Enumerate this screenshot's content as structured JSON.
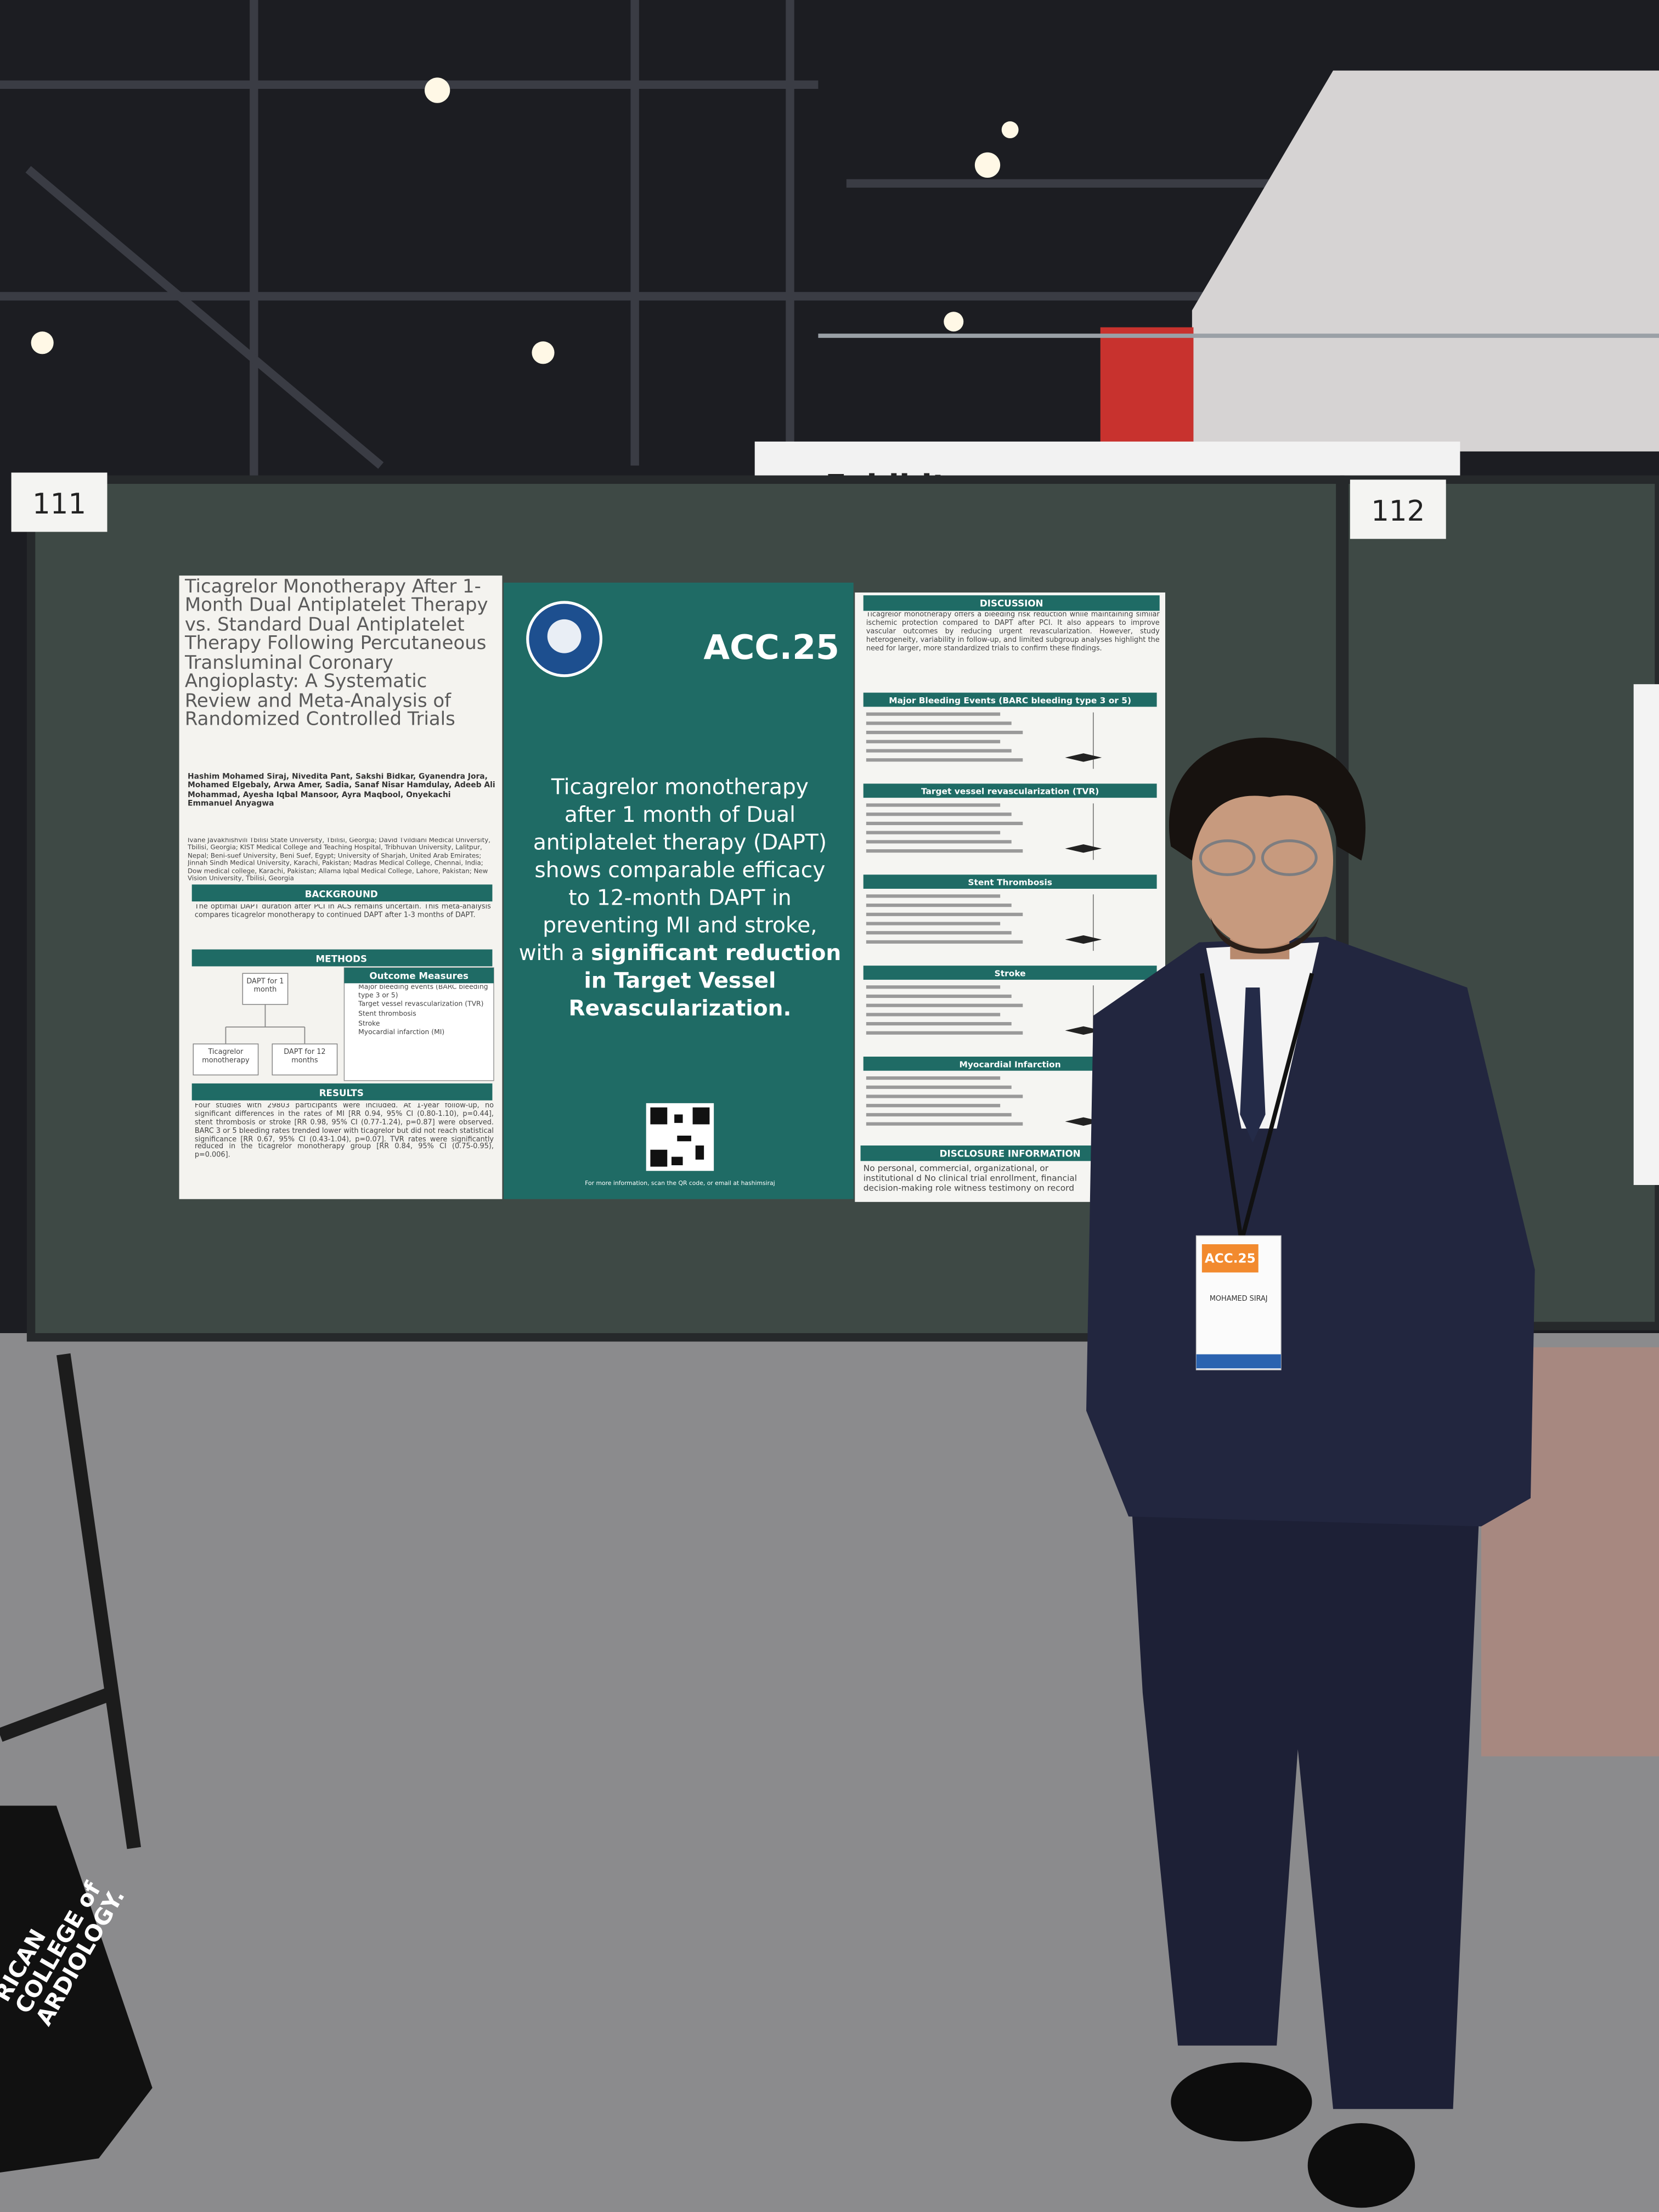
{
  "scene": {
    "booth_labels": [
      "111",
      "112"
    ],
    "exhibitor_sign": "Exhibitor"
  },
  "poster": {
    "title": "Ticagrelor Monotherapy After 1-Month Dual Antiplatelet Therapy vs. Standard Dual Antiplatelet Therapy Following Percutaneous Transluminal Coronary Angioplasty: A Systematic Review and Meta-Analysis of Randomized Controlled Trials",
    "authors": "Hashim Mohamed Siraj, Nivedita Pant, Sakshi Bidkar, Gyanendra Jora, Mohamed Elgebaly, Arwa Amer, Sadia, Sanaf Nisar Hamdulay, Adeeb Ali Mohammad, Ayesha Iqbal Mansoor, Ayra Maqbool, Onyekachi Emmanuel Anyagwa",
    "affiliations": "Ivane Javakhishvili Tbilisi State University, Tbilisi, Georgia; David Tvildiani Medical University, Tbilisi, Georgia; KIST Medical College and Teaching Hospital, Tribhuvan University, Lalitpur, Nepal; Beni-suef University, Beni Suef, Egypt; University of Sharjah, United Arab Emirates; Jinnah Sindh Medical University, Karachi, Pakistan; Madras Medical College, Chennai, India; Dow medical college, Karachi, Pakistan; Allama Iqbal Medical College, Lahore, Pakistan; New Vision University, Tbilisi, Georgia",
    "background": {
      "heading": "BACKGROUND",
      "text": "The optimal DAPT duration after PCI in ACS remains uncertain. This meta-analysis compares ticagrelor monotherapy to continued DAPT after 1-3 months of DAPT."
    },
    "methods": {
      "heading": "METHODS",
      "flow": [
        "DAPT for 1 month",
        "Ticagrelor monotherapy",
        "DAPT for 12 months"
      ],
      "outcomes_heading": "Outcome Measures",
      "outcomes": [
        "Major bleeding events (BARC bleeding type 3 or 5)",
        "Target vessel revascularization (TVR)",
        "Stent thrombosis",
        "Stroke",
        "Myocardial infarction (MI)"
      ]
    },
    "results": {
      "heading": "RESULTS",
      "text": "Four studies with 29803 participants were included. At 1-year follow-up, no significant differences in the rates of MI [RR 0.94, 95% CI (0.80-1.10), p=0.44], stent thrombosis or stroke [RR 0.98, 95% CI (0.77-1.24), p=0.87] were observed. BARC 3 or 5 bleeding rates trended lower with ticagrelor but did not reach statistical significance [RR 0.67, 95% CI (0.43-1.04), p=0.07]. TVR rates were significantly reduced in the ticagrelor monotherapy group [RR 0.84, 95% CI (0.75-0.95), p=0.006]."
    },
    "center": {
      "logo": "ACC.25",
      "statement": [
        [
          {
            "text": "Ticagrelor monotherapy",
            "bold": false
          }
        ],
        [
          {
            "text": "after 1 month of Dual",
            "bold": false
          }
        ],
        [
          {
            "text": "antiplatelet therapy (DAPT)",
            "bold": false
          }
        ],
        [
          {
            "text": "shows comparable efficacy",
            "bold": false
          }
        ],
        [
          {
            "text": "to 12-month DAPT in",
            "bold": false
          }
        ],
        [
          {
            "text": "preventing MI and stroke,",
            "bold": false
          }
        ],
        [
          {
            "text": "with a ",
            "bold": false
          },
          {
            "text": "significant reduction",
            "bold": true
          }
        ],
        [
          {
            "text": "in Target Vessel",
            "bold": true
          }
        ],
        [
          {
            "text": "Revascularization.",
            "bold": true
          }
        ]
      ],
      "qr_caption": "For more information, scan the QR code, or email at hashimsiraj"
    },
    "discussion": {
      "heading": "DISCUSSION",
      "text": "Ticagrelor monotherapy offers a bleeding risk reduction while maintaining similar ischemic protection compared to DAPT after PCI. It also appears to improve vascular outcomes by reducing urgent revascularization. However, study heterogeneity, variability in follow-up, and limited subgroup analyses highlight the need for larger, more standardized trials to confirm these findings."
    },
    "forest_plots": [
      "Major Bleeding Events (BARC bleeding type 3 or 5)",
      "Target vessel revascularization (TVR)",
      "Stent Thrombosis",
      "Stroke",
      "Myocardial Infarction"
    ],
    "disclosure": {
      "heading": "DISCLOSURE INFORMATION",
      "text": "No personal, commercial, organizational, or institutional d No clinical trial enrollment, financial decision-making role witness testimony on record"
    }
  },
  "badge": {
    "logo": "ACC.25",
    "name": "MOHAMED SIRAJ"
  },
  "bag": [
    "RICAN",
    "COLLEGE of",
    "ARDIOLOGY."
  ]
}
